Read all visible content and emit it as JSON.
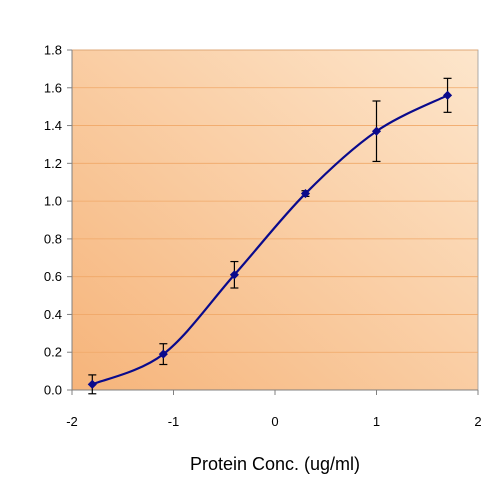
{
  "chart_data": {
    "type": "line",
    "title": "",
    "xlabel": "Protein Conc. (ug/ml)",
    "ylabel": "",
    "xlim": [
      -2,
      2
    ],
    "ylim": [
      0,
      1.8
    ],
    "xticks": [
      -2,
      -1,
      0,
      1,
      2
    ],
    "xtick_labels": [
      "-2",
      "-1",
      "0",
      "1",
      "2"
    ],
    "yticks": [
      0,
      0.2,
      0.4,
      0.6,
      0.8,
      1.0,
      1.2,
      1.4,
      1.6,
      1.8
    ],
    "ytick_labels": [
      "0.0",
      "0.2",
      "0.4",
      "0.6",
      "0.8",
      "1.0",
      "1.2",
      "1.4",
      "1.6",
      "1.8"
    ],
    "grid": "horizontal",
    "legend": "none",
    "series": [
      {
        "points": [
          {
            "x": -1.8,
            "y": 0.03,
            "err": 0.05
          },
          {
            "x": -1.1,
            "y": 0.19,
            "err": 0.055
          },
          {
            "x": -0.4,
            "y": 0.61,
            "err": 0.07
          },
          {
            "x": 0.3,
            "y": 1.04,
            "err": 0.015
          },
          {
            "x": 1.0,
            "y": 1.37,
            "err": 0.16
          },
          {
            "x": 1.7,
            "y": 1.56,
            "err": 0.09
          }
        ]
      }
    ],
    "colors": {
      "line": "#0a0a8c",
      "marker": "#0a0a8c",
      "error_bar": "#000000",
      "grid": "#f0a868",
      "plot_bg_light": "#fde6cc",
      "plot_bg_dark": "#f6b47a"
    }
  }
}
